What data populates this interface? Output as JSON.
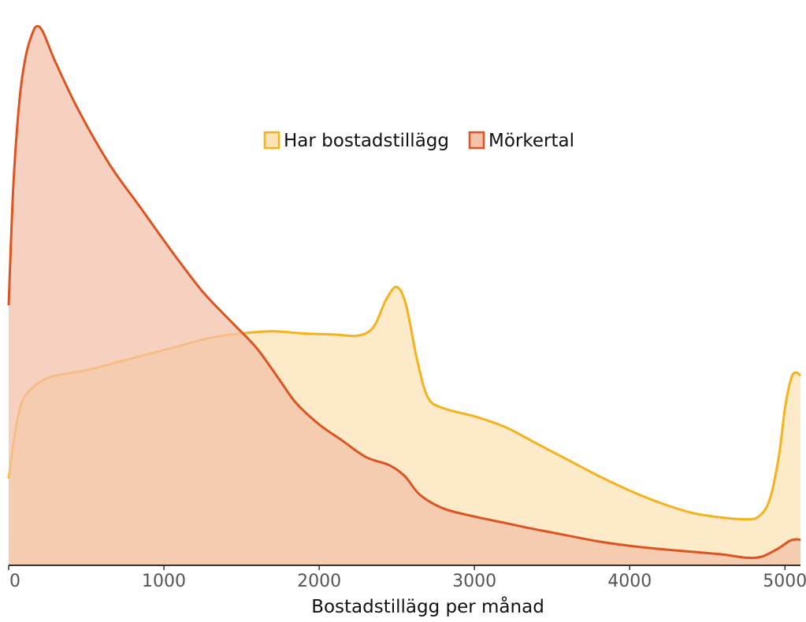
{
  "chart_data": {
    "type": "area",
    "title": "",
    "xlabel": "Bostadstillägg per månad",
    "ylabel": "",
    "xlim": [
      0,
      5100
    ],
    "ylim": [
      0,
      1.0
    ],
    "grid": false,
    "legend_position": "top-center",
    "x_ticks": [
      0,
      1000,
      2000,
      3000,
      4000,
      5000
    ],
    "x_tick_labels": [
      "0",
      "1000",
      "2000",
      "3000",
      "4000",
      "5000"
    ],
    "series": [
      {
        "name": "Har bostadstillägg",
        "fill": "#fbe3b5",
        "stroke": "#f5b21d",
        "points": [
          [
            0,
            0.16
          ],
          [
            50,
            0.26
          ],
          [
            100,
            0.31
          ],
          [
            200,
            0.338
          ],
          [
            300,
            0.35
          ],
          [
            500,
            0.36
          ],
          [
            700,
            0.375
          ],
          [
            900,
            0.39
          ],
          [
            1100,
            0.405
          ],
          [
            1300,
            0.42
          ],
          [
            1500,
            0.428
          ],
          [
            1700,
            0.432
          ],
          [
            1900,
            0.428
          ],
          [
            2100,
            0.426
          ],
          [
            2250,
            0.424
          ],
          [
            2350,
            0.44
          ],
          [
            2430,
            0.49
          ],
          [
            2500,
            0.514
          ],
          [
            2560,
            0.48
          ],
          [
            2630,
            0.38
          ],
          [
            2700,
            0.31
          ],
          [
            2800,
            0.29
          ],
          [
            3000,
            0.275
          ],
          [
            3200,
            0.255
          ],
          [
            3400,
            0.225
          ],
          [
            3600,
            0.195
          ],
          [
            3800,
            0.165
          ],
          [
            4000,
            0.138
          ],
          [
            4200,
            0.115
          ],
          [
            4400,
            0.097
          ],
          [
            4600,
            0.088
          ],
          [
            4750,
            0.085
          ],
          [
            4830,
            0.09
          ],
          [
            4900,
            0.12
          ],
          [
            4960,
            0.2
          ],
          [
            5000,
            0.29
          ],
          [
            5040,
            0.345
          ],
          [
            5070,
            0.356
          ],
          [
            5100,
            0.35
          ]
        ]
      },
      {
        "name": "Mörkertal",
        "fill": "#f4c2aa",
        "stroke": "#dc5422",
        "points": [
          [
            0,
            0.48
          ],
          [
            30,
            0.7
          ],
          [
            70,
            0.86
          ],
          [
            110,
            0.94
          ],
          [
            150,
            0.98
          ],
          [
            180,
            0.995
          ],
          [
            220,
            0.985
          ],
          [
            300,
            0.93
          ],
          [
            450,
            0.84
          ],
          [
            650,
            0.74
          ],
          [
            850,
            0.66
          ],
          [
            1050,
            0.58
          ],
          [
            1250,
            0.505
          ],
          [
            1450,
            0.445
          ],
          [
            1600,
            0.4
          ],
          [
            1750,
            0.34
          ],
          [
            1850,
            0.3
          ],
          [
            2000,
            0.26
          ],
          [
            2150,
            0.23
          ],
          [
            2300,
            0.2
          ],
          [
            2450,
            0.185
          ],
          [
            2550,
            0.165
          ],
          [
            2650,
            0.13
          ],
          [
            2800,
            0.105
          ],
          [
            3000,
            0.09
          ],
          [
            3200,
            0.078
          ],
          [
            3400,
            0.066
          ],
          [
            3600,
            0.055
          ],
          [
            3800,
            0.044
          ],
          [
            4000,
            0.036
          ],
          [
            4200,
            0.03
          ],
          [
            4400,
            0.025
          ],
          [
            4600,
            0.02
          ],
          [
            4750,
            0.014
          ],
          [
            4850,
            0.016
          ],
          [
            4950,
            0.03
          ],
          [
            5030,
            0.045
          ],
          [
            5070,
            0.048
          ],
          [
            5100,
            0.047
          ]
        ]
      }
    ]
  }
}
